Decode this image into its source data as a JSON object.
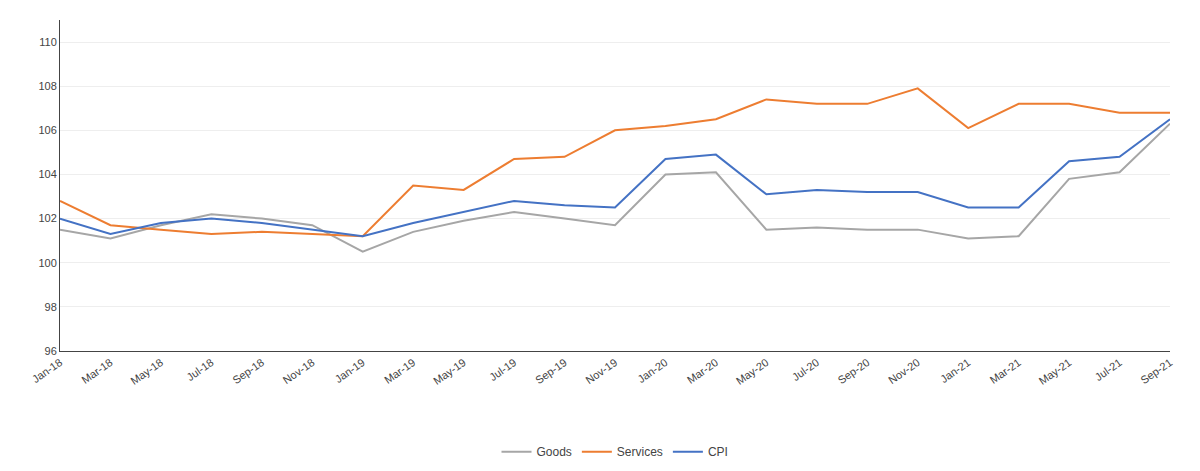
{
  "chart_data": {
    "type": "line",
    "categories": [
      "Jan-18",
      "Mar-18",
      "May-18",
      "Jul-18",
      "Sep-18",
      "Nov-18",
      "Jan-19",
      "Mar-19",
      "May-19",
      "Jul-19",
      "Sep-19",
      "Nov-19",
      "Jan-20",
      "Mar-20",
      "May-20",
      "Jul-20",
      "Sep-20",
      "Nov-20",
      "Jan-21",
      "Mar-21",
      "May-21",
      "Jul-21",
      "Sep-21"
    ],
    "series": [
      {
        "name": "Goods",
        "color": "#a6a6a6",
        "values": [
          101.5,
          101.1,
          101.7,
          102.2,
          102.0,
          101.7,
          100.5,
          101.4,
          101.9,
          102.3,
          102.0,
          101.7,
          104.0,
          104.1,
          101.5,
          101.6,
          101.5,
          101.5,
          101.1,
          101.2,
          103.8,
          104.1,
          106.3
        ]
      },
      {
        "name": "Services",
        "color": "#ed7d31",
        "values": [
          102.8,
          101.7,
          101.5,
          101.3,
          101.4,
          101.3,
          101.2,
          103.5,
          103.3,
          104.7,
          104.8,
          106.0,
          106.2,
          106.5,
          107.4,
          107.2,
          107.2,
          107.9,
          106.1,
          107.2,
          107.2,
          106.8,
          106.8
        ]
      },
      {
        "name": "CPI",
        "color": "#4472c4",
        "values": [
          102.0,
          101.3,
          101.8,
          102.0,
          101.8,
          101.5,
          101.2,
          101.8,
          102.3,
          102.8,
          102.6,
          102.5,
          104.7,
          104.9,
          103.1,
          103.3,
          103.2,
          103.2,
          102.5,
          102.5,
          104.6,
          104.8,
          106.5
        ]
      }
    ],
    "ylim": [
      96,
      111
    ],
    "yticks": [
      96,
      98,
      100,
      102,
      104,
      106,
      108,
      110
    ],
    "grid": true,
    "legend": "bottom"
  }
}
